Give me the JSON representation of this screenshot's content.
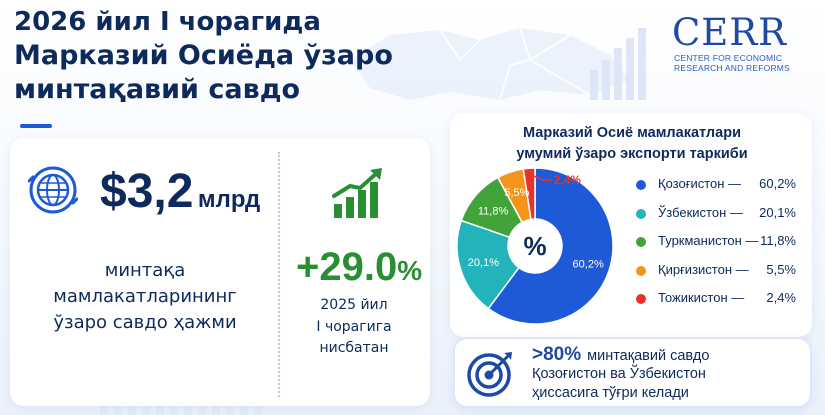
{
  "title": {
    "line1": "2026 йил I чорагида",
    "line2": "Марказий Осиёда ўзаро",
    "line3": "минтақавий савдо"
  },
  "logo": {
    "mark": "CERR",
    "sub_line1": "CENTER FOR ECONOMIC",
    "sub_line2": "RESEARCH AND REFORMS"
  },
  "trade": {
    "amount": "$3,2",
    "unit": "млрд",
    "description_line1": "минтақа мамлакатларининг",
    "description_line2": "ўзаро савдо ҳажми"
  },
  "growth": {
    "value": "+29.0",
    "percent_sign": "%",
    "note_line1": "2025 йил",
    "note_line2": "I чорагига нисбатан"
  },
  "chart_data": {
    "type": "pie",
    "title_line1": "Марказий Осиё мамлакатлари",
    "title_line2": "умумий ўзаро экспорти таркиби",
    "center_label": "%",
    "categories": [
      "Қозоғистон",
      "Ўзбекистон",
      "Туркманистон",
      "Қирғизистон",
      "Тожикистон"
    ],
    "values": [
      60.2,
      20.1,
      11.8,
      5.5,
      2.4
    ],
    "value_labels": [
      "60,2%",
      "20,1%",
      "11,8%",
      "5,5%",
      "2,4%"
    ],
    "slice_labels": [
      "60,2%",
      "20,1%",
      "11,8%",
      "5,5%",
      "2,4%"
    ],
    "colors": [
      "#1e5ad7",
      "#22b3bb",
      "#43a33b",
      "#f3951d",
      "#e8332a"
    ],
    "legend_dash": "—",
    "legend_placement": "right"
  },
  "note": {
    "percent": ">80%",
    "line1_rest": "минтақавий савдо",
    "line2": "Қозоғистон ва Ўзбекистон",
    "line3": "ҳиссасига тўғри келади"
  },
  "icons": {
    "globe": "globe-icon",
    "growth": "growth-chart-icon",
    "target": "target-icon"
  }
}
